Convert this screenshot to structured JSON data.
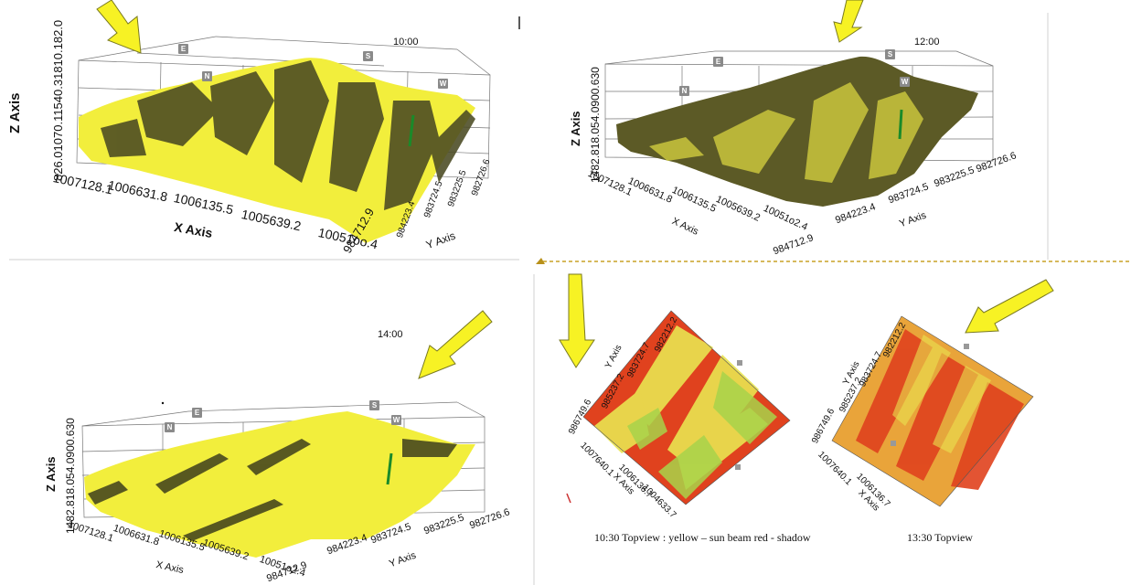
{
  "panels": [
    {
      "time": "10:00",
      "x_axis_title": "X Axis",
      "y_axis_title": "Y Axis",
      "z_axis_title": "Z Axis",
      "z_ticks": "826.01070.11540.31810.182.0",
      "x_ticks": [
        "1007128.1",
        "1006631.8",
        "1006135.5",
        "1005639.2",
        "10051oo.4"
      ],
      "y_ticks": [
        "984712.9",
        "984223.4",
        "983724.5",
        "983225.5",
        "982726.6"
      ],
      "compass": [
        "E",
        "S",
        "N",
        "W"
      ]
    },
    {
      "time": "12:00",
      "x_axis_title": "X Axis",
      "y_axis_title": "Y Axis",
      "z_axis_title": "Z Axis",
      "z_ticks": "1482.818.054.0900.630",
      "x_ticks": [
        "1007128.1",
        "1006631.8",
        "1006135.5",
        "1005639.2",
        "10051o2.4"
      ],
      "y_ticks": [
        "984712.9",
        "984223.4",
        "983724.5",
        "983225.5",
        "982726.6"
      ],
      "compass": [
        "E",
        "S",
        "N",
        "W"
      ]
    },
    {
      "time": "14:00",
      "x_axis_title": "X Axis",
      "y_axis_title": "Y Axis",
      "z_axis_title": "Z Axis",
      "z_ticks": "1482.818.054.0900.630",
      "x_ticks": [
        "1007128.1",
        "1006631.8",
        "1006135.5",
        "1005639.2",
        "10051o2.4"
      ],
      "y_ticks": [
        "984712.9",
        "984223.4",
        "983724.5",
        "983225.5",
        "982726.6"
      ],
      "compass": [
        "E",
        "S",
        "N",
        "W"
      ]
    }
  ],
  "topviews": [
    {
      "x_axis_title": "X Axis",
      "y_axis_title": "Y Axis",
      "x_ticks": [
        "1007640.1",
        "1006136.7",
        "1004633.7"
      ],
      "y_ticks": [
        "982212.2",
        "983724.7",
        "985237.2",
        "986749.6"
      ]
    },
    {
      "x_axis_title": "X Axis",
      "y_axis_title": "Y Axis",
      "x_ticks": [
        "1007640.1",
        "1006136.7"
      ],
      "y_ticks": [
        "982212.2",
        "983724.7",
        "985237.2",
        "986749.6"
      ]
    }
  ],
  "captions": {
    "left": "10:30   Topview  : yellow – sun beam  red - shadow",
    "right": "13:30 Topview"
  },
  "colors": {
    "sun_arrow": "#f7f224",
    "sun_arrow_outline": "#7a7a20",
    "terrain_light": "#f2ee3c",
    "terrain_dark": "#4a4a22",
    "topview_red": "#e0421e",
    "topview_yellow": "#e9e450",
    "divider_dashed": "#c9a227"
  }
}
